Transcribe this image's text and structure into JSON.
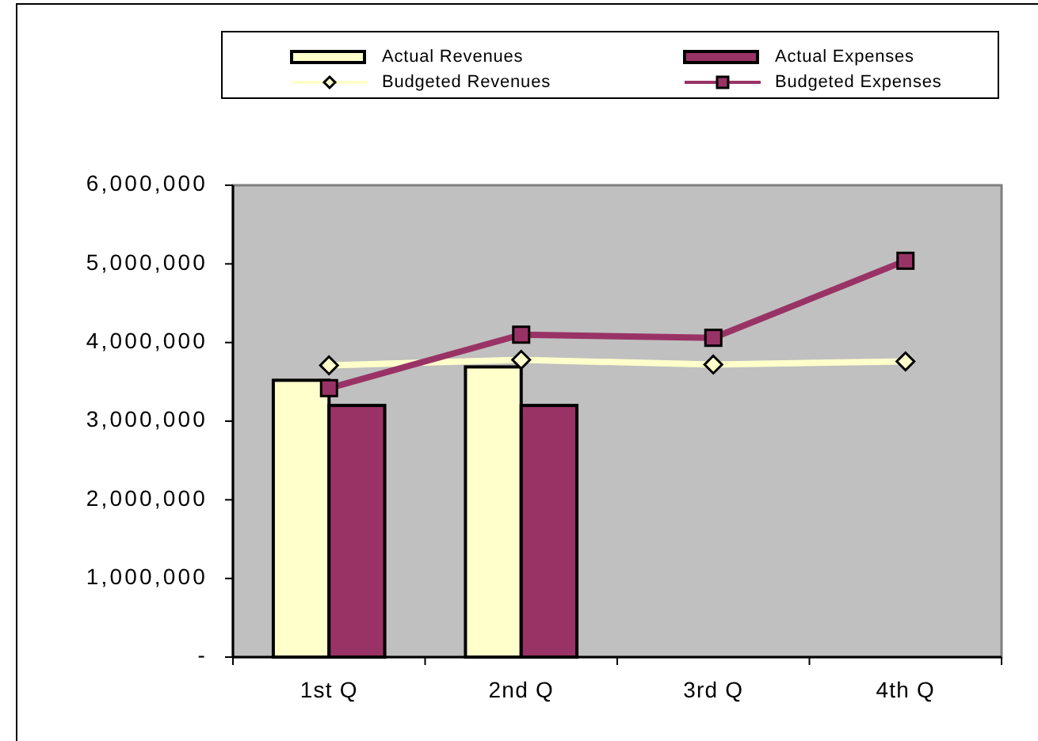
{
  "chart_data": {
    "type": "bar",
    "categories": [
      "1st Q",
      "2nd Q",
      "3rd Q",
      "4th Q"
    ],
    "series": [
      {
        "name": "Actual Revenues",
        "color": "#ffffcc",
        "values": [
          3520000,
          3690000,
          null,
          null
        ]
      },
      {
        "name": "Actual Expenses",
        "color": "#993366",
        "values": [
          3200000,
          3200000,
          null,
          null
        ]
      },
      {
        "name": "Budgeted Revenues",
        "type": "line",
        "color": "#ffffcc",
        "marker": "diamond",
        "values": [
          3710000,
          3780000,
          3720000,
          3760000
        ]
      },
      {
        "name": "Budgeted Expenses",
        "type": "line",
        "color": "#993366",
        "marker": "square",
        "values": [
          3420000,
          4100000,
          4060000,
          5040000
        ]
      }
    ],
    "ylim": [
      0,
      6000000
    ],
    "yticks": [
      {
        "value": 0,
        "label": "-"
      },
      {
        "value": 1000000,
        "label": "1,000,000"
      },
      {
        "value": 2000000,
        "label": "2,000,000"
      },
      {
        "value": 3000000,
        "label": "3,000,000"
      },
      {
        "value": 4000000,
        "label": "4,000,000"
      },
      {
        "value": 5000000,
        "label": "5,000,000"
      },
      {
        "value": 6000000,
        "label": "6,000,000"
      }
    ],
    "grid": false,
    "legend": "top"
  }
}
